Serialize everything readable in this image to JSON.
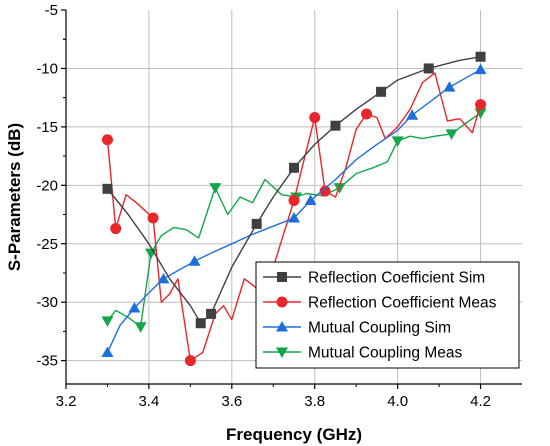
{
  "chart_data": {
    "type": "line",
    "xlabel": "Frequency (GHz)",
    "ylabel": "S-Parameters (dB)",
    "xlim": [
      3.2,
      4.3
    ],
    "ylim": [
      -37,
      -5
    ],
    "xticks": [
      3.2,
      3.4,
      3.6,
      3.8,
      4.0,
      4.2
    ],
    "yticks": [
      -35,
      -30,
      -25,
      -20,
      -15,
      -10,
      -5
    ],
    "xtick_labels": [
      "3.2",
      "3.4",
      "3.6",
      "3.8",
      "4.0",
      "4.2"
    ],
    "ytick_labels": [
      "-35",
      "-30",
      "-25",
      "-20",
      "-15",
      "-10",
      "-5"
    ],
    "grid": true,
    "legend_position": "bottom-right",
    "series": [
      {
        "name": "Reflection Coefficient Sim",
        "color": "#404040",
        "marker": "square",
        "x": [
          3.3,
          3.35,
          3.4,
          3.45,
          3.5,
          3.525,
          3.55,
          3.6,
          3.66,
          3.7,
          3.75,
          3.8,
          3.85,
          3.9,
          3.96,
          4.0,
          4.075,
          4.15,
          4.2
        ],
        "y": [
          -20.3,
          -22.5,
          -25.0,
          -28.0,
          -30.3,
          -31.8,
          -31.0,
          -27.0,
          -23.3,
          -21.0,
          -18.5,
          -16.5,
          -14.9,
          -13.5,
          -12.0,
          -11.0,
          -10.0,
          -9.3,
          -9.0
        ],
        "marker_x": [
          3.3,
          3.525,
          3.55,
          3.66,
          3.75,
          3.85,
          3.96,
          4.075,
          4.2
        ],
        "marker_y": [
          -20.3,
          -31.8,
          -31.0,
          -23.3,
          -18.5,
          -14.9,
          -12.0,
          -10.0,
          -9.0
        ]
      },
      {
        "name": "Reflection Coefficient Meas",
        "color": "#e8262b",
        "marker": "circle",
        "x": [
          3.3,
          3.32,
          3.345,
          3.37,
          3.41,
          3.43,
          3.45,
          3.47,
          3.5,
          3.53,
          3.56,
          3.58,
          3.6,
          3.63,
          3.66,
          3.7,
          3.75,
          3.78,
          3.8,
          3.825,
          3.85,
          3.875,
          3.9,
          3.925,
          3.95,
          3.97,
          4.0,
          4.03,
          4.06,
          4.09,
          4.12,
          4.15,
          4.18,
          4.2
        ],
        "y": [
          -16.1,
          -23.7,
          -20.8,
          -21.5,
          -22.8,
          -30.0,
          -29.3,
          -28.0,
          -35.0,
          -34.3,
          -31.0,
          -30.3,
          -31.5,
          -28.0,
          -28.8,
          -27.0,
          -21.3,
          -17.0,
          -14.2,
          -20.5,
          -21.0,
          -18.5,
          -15.2,
          -13.9,
          -14.2,
          -16.0,
          -15.0,
          -13.5,
          -11.2,
          -10.4,
          -14.5,
          -14.3,
          -15.5,
          -13.1
        ],
        "marker_x": [
          3.3,
          3.32,
          3.41,
          3.5,
          3.75,
          3.8,
          3.825,
          3.925,
          4.2
        ],
        "marker_y": [
          -16.1,
          -23.7,
          -22.8,
          -35.0,
          -21.3,
          -14.2,
          -20.5,
          -13.9,
          -13.1
        ]
      },
      {
        "name": "Mutual Coupling Sim",
        "color": "#1f6fdb",
        "marker": "triangle-up",
        "x": [
          3.3,
          3.33,
          3.365,
          3.4,
          3.435,
          3.47,
          3.51,
          3.55,
          3.6,
          3.65,
          3.7,
          3.75,
          3.79,
          3.85,
          3.9,
          3.95,
          4.0,
          4.035,
          4.08,
          4.125,
          4.165,
          4.2
        ],
        "y": [
          -34.3,
          -32.0,
          -30.5,
          -29.2,
          -28.0,
          -27.3,
          -26.5,
          -25.8,
          -25.0,
          -24.2,
          -23.5,
          -22.8,
          -21.3,
          -19.5,
          -17.8,
          -16.5,
          -15.3,
          -14.0,
          -12.8,
          -11.6,
          -10.8,
          -10.1
        ],
        "marker_x": [
          3.3,
          3.365,
          3.435,
          3.51,
          3.75,
          3.79,
          4.035,
          4.125,
          4.2
        ],
        "marker_y": [
          -34.3,
          -30.5,
          -28.0,
          -26.5,
          -22.8,
          -21.3,
          -14.0,
          -11.6,
          -10.1
        ]
      },
      {
        "name": "Mutual Coupling Meas",
        "color": "#13a64a",
        "marker": "triangle-down",
        "x": [
          3.3,
          3.32,
          3.35,
          3.38,
          3.405,
          3.43,
          3.46,
          3.49,
          3.52,
          3.56,
          3.59,
          3.62,
          3.65,
          3.68,
          3.72,
          3.755,
          3.78,
          3.82,
          3.86,
          3.9,
          3.94,
          3.975,
          4.0,
          4.03,
          4.06,
          4.09,
          4.13,
          4.16,
          4.2
        ],
        "y": [
          -31.6,
          -30.7,
          -31.3,
          -32.1,
          -25.8,
          -24.3,
          -23.6,
          -23.8,
          -24.5,
          -20.2,
          -22.5,
          -21.0,
          -21.5,
          -19.5,
          -20.8,
          -21.0,
          -20.7,
          -20.9,
          -20.2,
          -19.0,
          -18.5,
          -18.0,
          -16.2,
          -15.8,
          -16.0,
          -15.8,
          -15.6,
          -14.8,
          -13.8
        ],
        "marker_x": [
          3.3,
          3.38,
          3.405,
          3.56,
          3.755,
          3.86,
          4.0,
          4.13,
          4.2
        ],
        "marker_y": [
          -31.6,
          -32.1,
          -25.8,
          -20.2,
          -21.0,
          -20.2,
          -16.2,
          -15.6,
          -13.8
        ]
      }
    ]
  }
}
